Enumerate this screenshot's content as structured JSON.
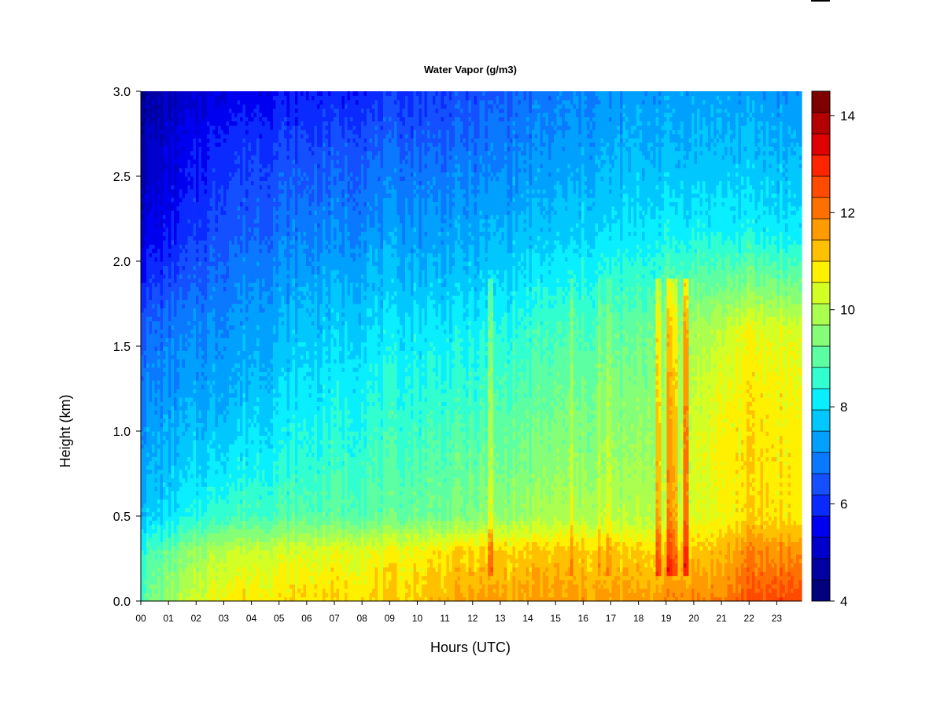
{
  "chart_data": {
    "type": "heatmap",
    "title": "Water Vapor (g/m3)",
    "xlabel": "Hours (UTC)",
    "ylabel": "Height (km)",
    "x_ticks": [
      "00",
      "01",
      "02",
      "03",
      "04",
      "05",
      "06",
      "07",
      "08",
      "09",
      "10",
      "11",
      "12",
      "13",
      "14",
      "15",
      "16",
      "17",
      "18",
      "19",
      "20",
      "21",
      "22",
      "23"
    ],
    "y_ticks": [
      "0.0",
      "0.5",
      "1.0",
      "1.5",
      "2.0",
      "2.5",
      "3.0"
    ],
    "xlim": [
      0,
      23.9
    ],
    "ylim": [
      0.0,
      3.0
    ],
    "colorbar": {
      "min": 4,
      "max": 14.5,
      "step": 0.5,
      "ticks": [
        "4",
        "6",
        "8",
        "10",
        "12",
        "14"
      ],
      "colors": [
        "#00007F",
        "#0000A3",
        "#0000CC",
        "#0000F0",
        "#0A2AFF",
        "#1450FF",
        "#0A78FF",
        "#00A0FF",
        "#00C8FF",
        "#0AEFFF",
        "#32FFD0",
        "#5CFFA2",
        "#86FF78",
        "#ABFF4E",
        "#D4FF24",
        "#FFF000",
        "#FFC000",
        "#FF9A00",
        "#FF7000",
        "#FF4A00",
        "#FF2400",
        "#E00000",
        "#B40000",
        "#7F0000"
      ]
    },
    "series": [
      {
        "x": 0,
        "y": [
          9.8,
          9.2,
          8.2,
          7.8,
          7.4,
          7.0,
          6.3,
          5.4,
          5.0,
          4.8,
          4.6
        ]
      },
      {
        "x": 3,
        "y": [
          11.8,
          11.0,
          9.4,
          8.7,
          8.0,
          7.6,
          7.3,
          6.8,
          6.5,
          6.2,
          5.6
        ]
      },
      {
        "x": 6,
        "y": [
          12.0,
          11.3,
          9.7,
          9.2,
          8.7,
          8.2,
          7.9,
          7.3,
          6.9,
          6.5,
          6.0
        ]
      },
      {
        "x": 9,
        "y": [
          12.0,
          11.5,
          9.8,
          9.5,
          9.1,
          8.6,
          8.2,
          7.6,
          7.2,
          6.8,
          6.3
        ]
      },
      {
        "x": 12,
        "y": [
          12.6,
          12.0,
          10.2,
          9.8,
          9.3,
          8.8,
          8.3,
          7.8,
          7.4,
          7.0,
          6.7
        ]
      },
      {
        "x": 15,
        "y": [
          12.7,
          12.1,
          10.8,
          10.3,
          9.9,
          9.4,
          8.9,
          8.2,
          7.8,
          7.5,
          7.3
        ]
      },
      {
        "x": 18,
        "y": [
          12.6,
          12.0,
          10.8,
          10.5,
          10.2,
          9.8,
          9.3,
          8.6,
          8.2,
          7.9,
          7.7
        ]
      },
      {
        "x": 19.5,
        "y": [
          13.0,
          12.0,
          11.2,
          11.0,
          10.8,
          10.5,
          9.8,
          8.8,
          8.3,
          8.0,
          7.8
        ]
      },
      {
        "x": 21,
        "y": [
          13.0,
          12.3,
          11.5,
          11.7,
          11.5,
          11.0,
          10.0,
          8.8,
          8.3,
          8.0,
          7.8
        ]
      },
      {
        "x": 22,
        "y": [
          13.6,
          12.9,
          12.0,
          11.9,
          11.8,
          11.5,
          10.2,
          8.8,
          8.3,
          8.0,
          7.7
        ]
      },
      {
        "x": 23.9,
        "y": [
          13.9,
          12.8,
          11.8,
          11.8,
          11.6,
          11.3,
          10.0,
          8.6,
          8.2,
          7.9,
          7.6
        ]
      }
    ],
    "heights": [
      0.0,
      0.3,
      0.5,
      0.8,
      1.2,
      1.6,
      1.85,
      2.2,
      2.5,
      2.75,
      3.0
    ],
    "streaks": [
      {
        "x": 12.65,
        "delta": 1.0
      },
      {
        "x": 15.6,
        "delta": 0.7
      },
      {
        "x": 16.6,
        "delta": 0.6
      },
      {
        "x": 16.9,
        "delta": 0.6
      },
      {
        "x": 18.7,
        "delta": 1.6
      },
      {
        "x": 19.1,
        "delta": 1.8
      },
      {
        "x": 19.3,
        "delta": 1.4
      },
      {
        "x": 19.7,
        "delta": 2.2
      }
    ]
  }
}
